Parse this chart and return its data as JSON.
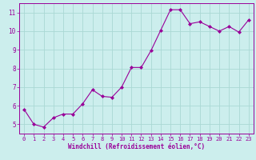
{
  "x": [
    0,
    1,
    2,
    3,
    4,
    5,
    6,
    7,
    8,
    9,
    10,
    11,
    12,
    13,
    14,
    15,
    16,
    17,
    18,
    19,
    20,
    21,
    22,
    23
  ],
  "y": [
    5.8,
    5.0,
    4.85,
    5.35,
    5.55,
    5.55,
    6.1,
    6.85,
    6.5,
    6.45,
    7.0,
    8.05,
    8.05,
    8.95,
    10.05,
    11.15,
    11.15,
    10.4,
    10.5,
    10.25,
    10.0,
    10.25,
    9.95,
    10.6
  ],
  "line_color": "#990099",
  "marker": "D",
  "marker_size": 2.0,
  "bg_color": "#cceeed",
  "grid_color": "#aad8d4",
  "xlabel": "Windchill (Refroidissement éolien,°C)",
  "xlabel_color": "#990099",
  "tick_color": "#990099",
  "xlim": [
    -0.5,
    23.5
  ],
  "ylim": [
    4.5,
    11.5
  ],
  "yticks": [
    5,
    6,
    7,
    8,
    9,
    10,
    11
  ],
  "xticks": [
    0,
    1,
    2,
    3,
    4,
    5,
    6,
    7,
    8,
    9,
    10,
    11,
    12,
    13,
    14,
    15,
    16,
    17,
    18,
    19,
    20,
    21,
    22,
    23
  ],
  "xlabel_fontsize": 5.5,
  "xtick_fontsize": 5.0,
  "ytick_fontsize": 5.5
}
